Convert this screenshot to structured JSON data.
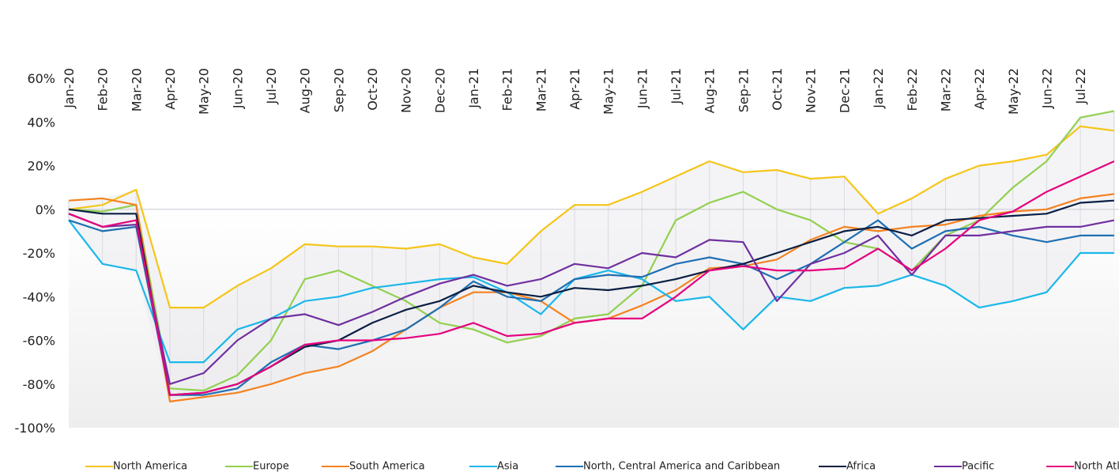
{
  "chart_data": {
    "type": "line",
    "categories": [
      "Jan-20",
      "Feb-20",
      "Mar-20",
      "Apr-20",
      "May-20",
      "Jun-20",
      "Jul-20",
      "Aug-20",
      "Sep-20",
      "Oct-20",
      "Nov-20",
      "Dec-20",
      "Jan-21",
      "Feb-21",
      "Mar-21",
      "Apr-21",
      "May-21",
      "Jun-21",
      "Jul-21",
      "Aug-21",
      "Sep-21",
      "Oct-21",
      "Nov-21",
      "Dec-21",
      "Jan-22",
      "Feb-22",
      "Mar-22",
      "Apr-22",
      "May-22",
      "Jun-22",
      "Jul-22",
      null
    ],
    "ylim": [
      -100,
      60
    ],
    "yticks": [
      {
        "value": 60,
        "label": "60%"
      },
      {
        "value": 40,
        "label": "40%"
      },
      {
        "value": 20,
        "label": "20%"
      },
      {
        "value": 0,
        "label": "0%"
      },
      {
        "value": -20,
        "label": "-20%"
      },
      {
        "value": -40,
        "label": "-40%"
      },
      {
        "value": -60,
        "label": "-60%"
      },
      {
        "value": -80,
        "label": "-80%"
      },
      {
        "value": -100,
        "label": "-100%"
      }
    ],
    "series": [
      {
        "name": "North America",
        "color": "#f5c518",
        "values": [
          0,
          2,
          9,
          -45,
          -45,
          -35,
          -27,
          -16,
          -17,
          -17,
          -18,
          -16,
          -22,
          -25,
          -10,
          2,
          2,
          8,
          15,
          22,
          17,
          18,
          14,
          15,
          -2,
          5,
          14,
          20,
          22,
          25,
          38,
          36
        ]
      },
      {
        "name": "Europe",
        "color": "#92d050",
        "values": [
          0,
          -1,
          2,
          -82,
          -83,
          -76,
          -60,
          -32,
          -28,
          -35,
          -42,
          -52,
          -55,
          -61,
          -58,
          -50,
          -48,
          -35,
          -5,
          3,
          8,
          0,
          -5,
          -15,
          -18,
          -28,
          -12,
          -5,
          10,
          22,
          42,
          45
        ]
      },
      {
        "name": "South America",
        "color": "#f58220",
        "values": [
          4,
          5,
          2,
          -88,
          -86,
          -84,
          -80,
          -75,
          -72,
          -65,
          -55,
          -45,
          -38,
          -38,
          -42,
          -52,
          -50,
          -44,
          -37,
          -27,
          -26,
          -23,
          -14,
          -8,
          -10,
          -8,
          -7,
          -3,
          -1,
          0,
          5,
          7
        ]
      },
      {
        "name": "Asia",
        "color": "#1ab7ea",
        "values": [
          -5,
          -25,
          -28,
          -70,
          -70,
          -55,
          -50,
          -42,
          -40,
          -36,
          -34,
          -32,
          -31,
          -38,
          -48,
          -32,
          -28,
          -32,
          -42,
          -40,
          -55,
          -40,
          -42,
          -36,
          -35,
          -30,
          -35,
          -45,
          -42,
          -38,
          -20,
          -20
        ]
      },
      {
        "name": "North, Central America and Caribbean",
        "color": "#1f6fb2",
        "values": [
          -5,
          -10,
          -8,
          -85,
          -85,
          -82,
          -70,
          -62,
          -64,
          -60,
          -55,
          -45,
          -33,
          -40,
          -42,
          -32,
          -30,
          -31,
          -25,
          -22,
          -25,
          -32,
          -25,
          -15,
          -5,
          -18,
          -10,
          -8,
          -12,
          -15,
          -12,
          -12
        ]
      },
      {
        "name": "Africa",
        "color": "#0a1f44",
        "values": [
          0,
          -2,
          -2,
          -85,
          -84,
          -80,
          -72,
          -63,
          -60,
          -52,
          -46,
          -42,
          -35,
          -38,
          -40,
          -36,
          -37,
          -35,
          -32,
          -28,
          -25,
          -20,
          -15,
          -10,
          -8,
          -12,
          -5,
          -4,
          -3,
          -2,
          3,
          4
        ]
      },
      {
        "name": "Pacific",
        "color": "#7030a0",
        "values": [
          -2,
          -8,
          -7,
          -80,
          -75,
          -60,
          -50,
          -48,
          -53,
          -47,
          -40,
          -34,
          -30,
          -35,
          -32,
          -25,
          -27,
          -20,
          -22,
          -14,
          -15,
          -42,
          -25,
          -20,
          -12,
          -30,
          -12,
          -12,
          -10,
          -8,
          -8,
          -5
        ]
      },
      {
        "name": "North Atlantic",
        "color": "#e6007e",
        "values": [
          -2,
          -8,
          -5,
          -85,
          -84,
          -80,
          -72,
          -62,
          -60,
          -60,
          -59,
          -57,
          -52,
          -58,
          -57,
          -52,
          -50,
          -50,
          -40,
          -28,
          -26,
          -28,
          -28,
          -27,
          -18,
          -28,
          -18,
          -5,
          -1,
          8,
          15,
          22
        ]
      }
    ]
  }
}
